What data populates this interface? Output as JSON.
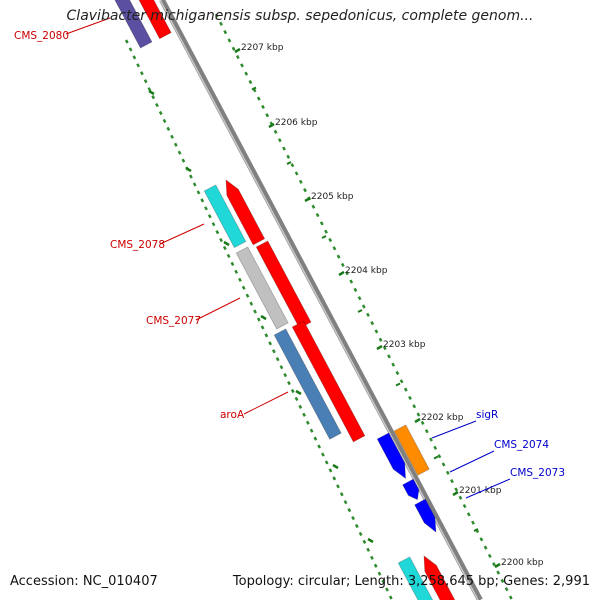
{
  "title": "Clavibacter michiganensis subsp. sepedonicus, complete genom...",
  "footer": {
    "accession": "Accession: NC_010407",
    "summary": "Topology: circular; Length: 3,258,645 bp; Genes: 2,991"
  },
  "ticks": [
    {
      "label": "2207 kbp",
      "kbp": 2207
    },
    {
      "label": "2206 kbp",
      "kbp": 2206
    },
    {
      "label": "2205 kbp",
      "kbp": 2205
    },
    {
      "label": "2204 kbp",
      "kbp": 2204
    },
    {
      "label": "2203 kbp",
      "kbp": 2203
    },
    {
      "label": "2202 kbp",
      "kbp": 2202
    },
    {
      "label": "2201 kbp",
      "kbp": 2201
    },
    {
      "label": "2200 kbp",
      "kbp": 2200
    }
  ],
  "genes": [
    {
      "label": "CMS_2080",
      "color": "#ff0000"
    },
    {
      "label": "CMS_2078",
      "color": "#ff0000"
    },
    {
      "label": "CMS_2077",
      "color": "#ff0000"
    },
    {
      "label": "aroA",
      "color": "#ff0000"
    },
    {
      "label": "sigR",
      "color": "#0000cc"
    },
    {
      "label": "CMS_2074",
      "color": "#0000cc"
    },
    {
      "label": "CMS_2073",
      "color": "#0000cc"
    }
  ],
  "colors": {
    "backbone": "#808080",
    "cds_forward": "#ff0000",
    "cds_reverse": "#0000ff",
    "tick_marks": "#1a7a1a",
    "tick_dots": "#2e8b2e",
    "cog_cyan": "#20d8d8",
    "cog_grey": "#c0c0c0",
    "cog_steelblue": "#4a7fb5",
    "cog_orange": "#ff8c00",
    "cog_purple": "#5a4fa0",
    "label_forward": "#cc0000",
    "label_reverse": "#0000cc"
  }
}
